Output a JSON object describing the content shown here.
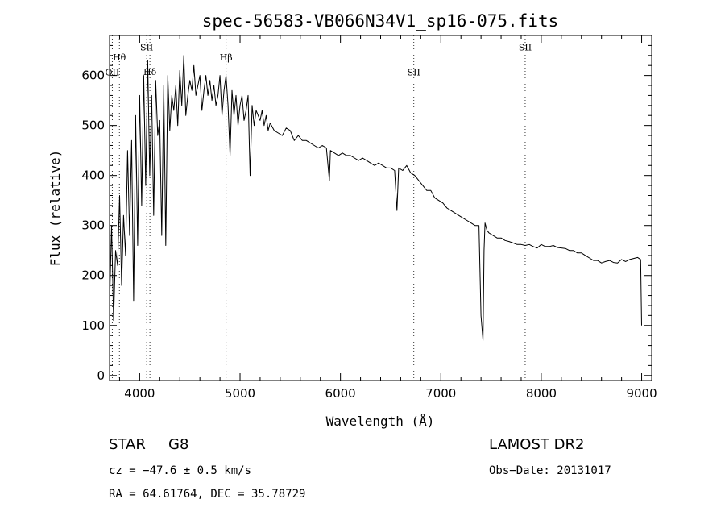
{
  "chart_data": {
    "type": "line",
    "title": "spec-56583-VB066N34V1_sp16-075.fits",
    "xlabel": "Wavelength (Å)",
    "ylabel": "Flux (relative)",
    "xlim": [
      3700,
      9100
    ],
    "ylim": [
      -10,
      680
    ],
    "xticks": [
      4000,
      5000,
      6000,
      7000,
      8000,
      9000
    ],
    "yticks": [
      0,
      100,
      200,
      300,
      400,
      500,
      600
    ],
    "grid": false,
    "series": [
      {
        "x": [
          3700,
          3720,
          3740,
          3760,
          3780,
          3800,
          3820,
          3840,
          3860,
          3880,
          3900,
          3920,
          3940,
          3960,
          3980,
          4000,
          4020,
          4040,
          4060,
          4080,
          4100,
          4120,
          4140,
          4160,
          4180,
          4200,
          4220,
          4240,
          4260,
          4280,
          4300,
          4320,
          4340,
          4360,
          4380,
          4400,
          4420,
          4440,
          4460,
          4480,
          4500,
          4520,
          4540,
          4560,
          4580,
          4600,
          4620,
          4640,
          4660,
          4680,
          4700,
          4720,
          4740,
          4760,
          4780,
          4800,
          4820,
          4840,
          4860,
          4880,
          4900,
          4920,
          4940,
          4960,
          4980,
          5000,
          5020,
          5040,
          5060,
          5080,
          5100,
          5120,
          5140,
          5160,
          5180,
          5200,
          5220,
          5240,
          5260,
          5280,
          5300,
          5340,
          5380,
          5420,
          5460,
          5500,
          5540,
          5580,
          5620,
          5660,
          5700,
          5740,
          5780,
          5820,
          5860,
          5890,
          5900,
          5940,
          5980,
          6020,
          6060,
          6100,
          6140,
          6180,
          6220,
          6260,
          6300,
          6340,
          6380,
          6420,
          6460,
          6500,
          6540,
          6563,
          6580,
          6620,
          6660,
          6700,
          6740,
          6780,
          6820,
          6860,
          6900,
          6940,
          6980,
          7020,
          7060,
          7100,
          7140,
          7180,
          7220,
          7260,
          7300,
          7340,
          7380,
          7400,
          7420,
          7430,
          7440,
          7460,
          7480,
          7520,
          7560,
          7600,
          7640,
          7680,
          7720,
          7760,
          7800,
          7840,
          7880,
          7920,
          7960,
          8000,
          8040,
          8080,
          8120,
          8160,
          8200,
          8240,
          8280,
          8320,
          8360,
          8400,
          8440,
          8480,
          8520,
          8560,
          8600,
          8640,
          8680,
          8720,
          8760,
          8800,
          8840,
          8880,
          8920,
          8960,
          8990,
          9000
        ],
        "values": [
          140,
          300,
          110,
          250,
          220,
          360,
          180,
          320,
          240,
          450,
          280,
          470,
          150,
          520,
          260,
          560,
          340,
          600,
          380,
          630,
          400,
          560,
          320,
          590,
          480,
          510,
          280,
          580,
          260,
          600,
          490,
          560,
          530,
          580,
          500,
          610,
          540,
          640,
          520,
          560,
          590,
          570,
          620,
          560,
          580,
          600,
          530,
          570,
          600,
          560,
          590,
          550,
          580,
          540,
          560,
          600,
          520,
          570,
          600,
          540,
          440,
          570,
          520,
          560,
          500,
          540,
          560,
          510,
          530,
          560,
          400,
          540,
          500,
          530,
          520,
          510,
          530,
          500,
          520,
          490,
          505,
          490,
          485,
          480,
          495,
          490,
          470,
          480,
          470,
          470,
          465,
          460,
          455,
          460,
          455,
          390,
          450,
          445,
          440,
          445,
          440,
          440,
          435,
          430,
          435,
          430,
          425,
          420,
          425,
          420,
          415,
          415,
          410,
          330,
          415,
          410,
          420,
          405,
          400,
          390,
          380,
          370,
          370,
          355,
          350,
          345,
          335,
          330,
          325,
          320,
          315,
          310,
          305,
          300,
          300,
          120,
          70,
          250,
          305,
          290,
          285,
          280,
          275,
          275,
          270,
          268,
          265,
          262,
          262,
          260,
          262,
          258,
          255,
          262,
          258,
          258,
          260,
          256,
          255,
          254,
          250,
          250,
          245,
          245,
          240,
          235,
          230,
          230,
          225,
          228,
          230,
          226,
          225,
          232,
          228,
          232,
          234,
          236,
          232,
          100
        ]
      }
    ],
    "lines": [
      {
        "label": "OII",
        "x": 3727,
        "label_y": 600
      },
      {
        "label": "Hθ",
        "x": 3798,
        "label_y": 630
      },
      {
        "label": "SII",
        "x": 4070,
        "label_y": 650
      },
      {
        "label": "Hδ",
        "x": 4102,
        "label_y": 601
      },
      {
        "label": "Hβ",
        "x": 4861,
        "label_y": 630
      },
      {
        "label": "SII",
        "x": 6731,
        "label_y": 600
      },
      {
        "label": "SII",
        "x": 7840,
        "label_y": 650
      }
    ]
  },
  "info": {
    "class_label": "STAR",
    "subclass": "G8",
    "cz": "cz = −47.6 ± 0.5 km/s",
    "coords": "RA =  64.61764, DEC =  35.78729",
    "survey": "LAMOST DR2",
    "obs_date": "Obs−Date: 20131017"
  }
}
